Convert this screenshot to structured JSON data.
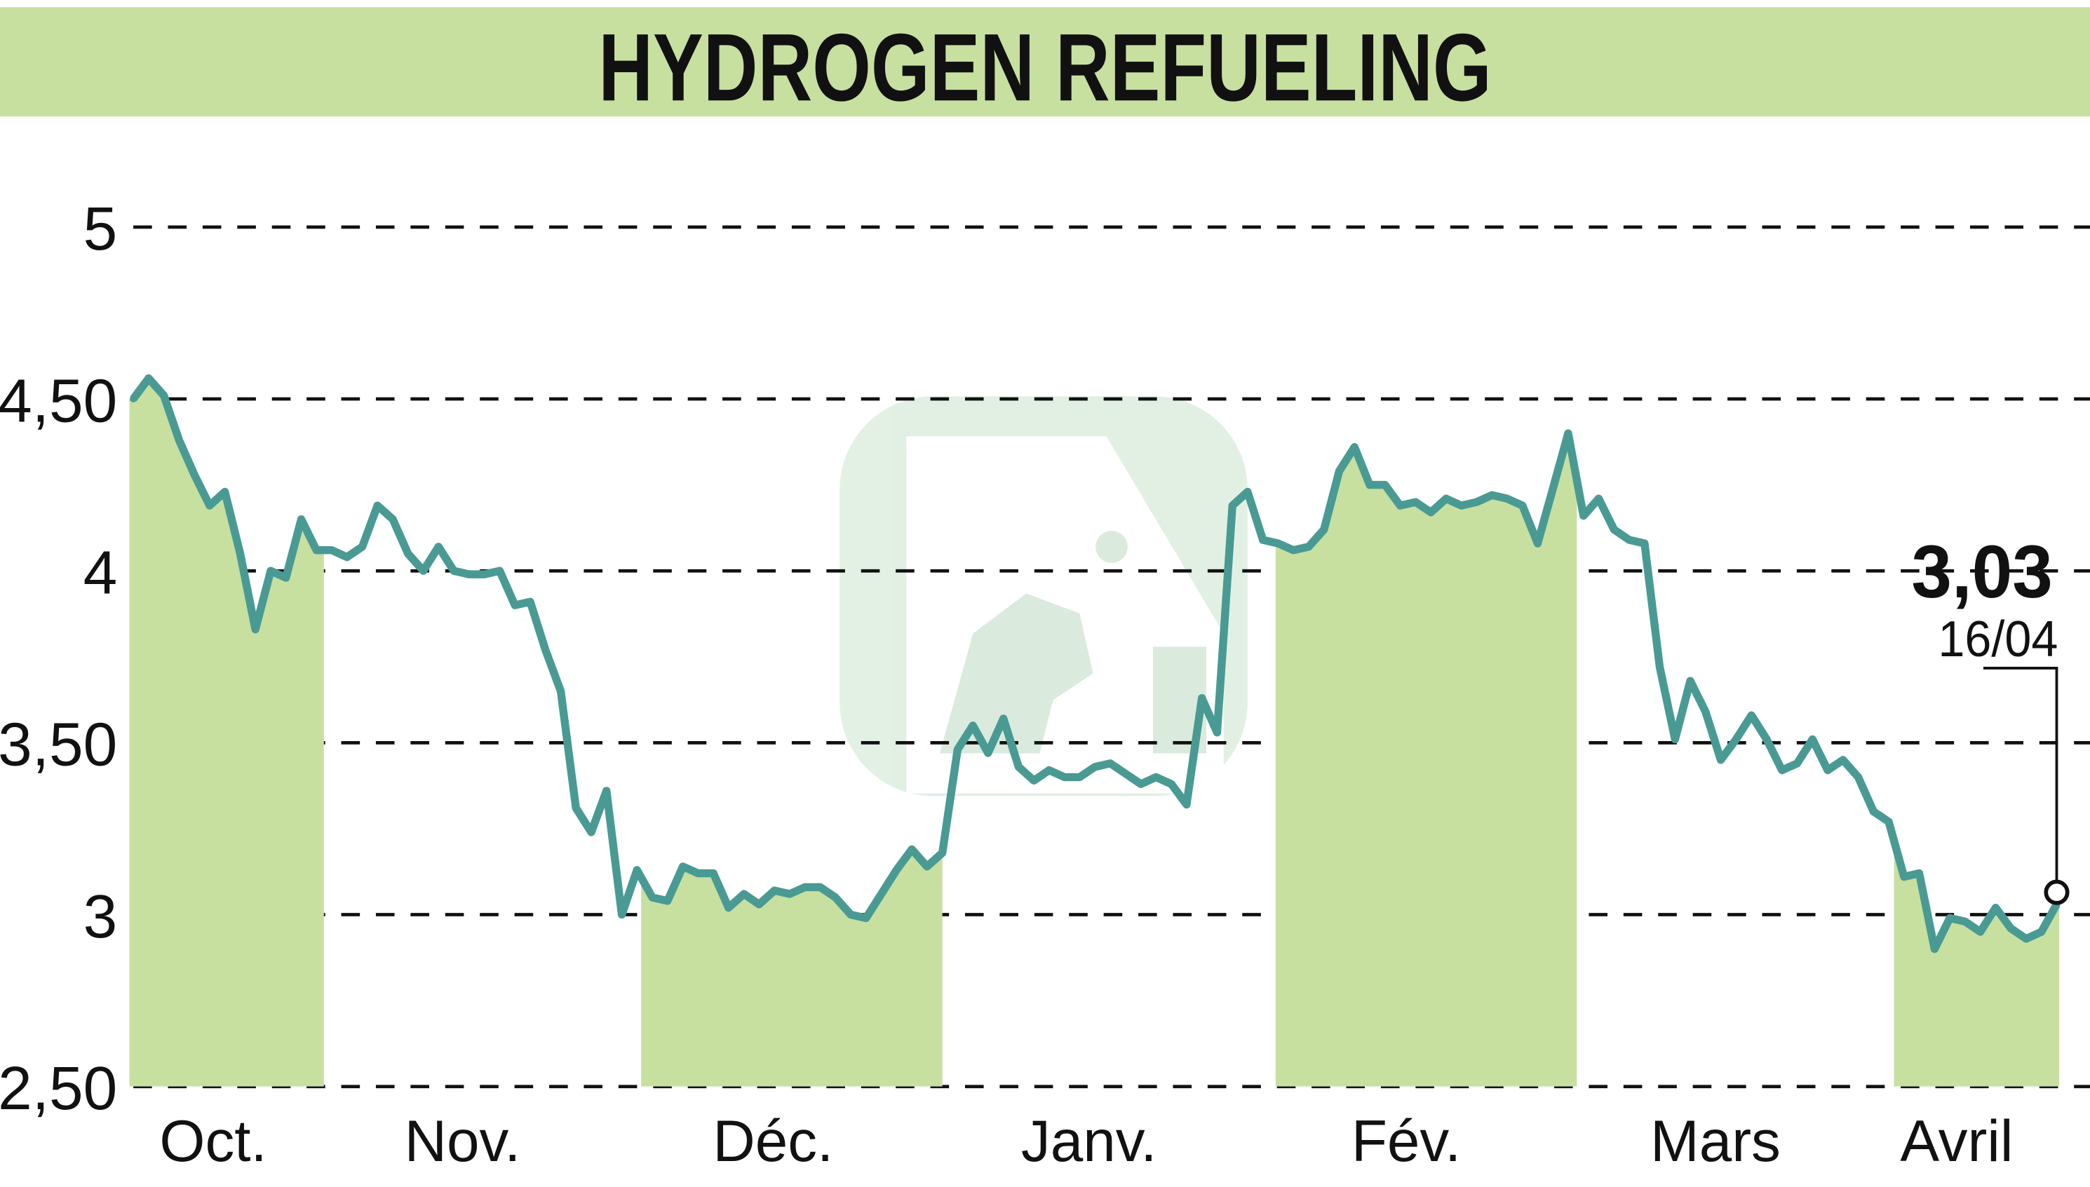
{
  "chart_data": {
    "type": "line",
    "title": "HYDROGEN REFUELING",
    "xlabel": "",
    "ylabel": "",
    "ylim": [
      2.5,
      5
    ],
    "yticks": [
      "5",
      "4,50",
      "4",
      "3,50",
      "3",
      "2,50"
    ],
    "ytick_values": [
      5,
      4.5,
      4,
      3.5,
      3,
      2.5
    ],
    "grid": "horizontal dashed",
    "months": [
      "Oct.",
      "Nov.",
      "Déc.",
      "Janv.",
      "Fév.",
      "Mars",
      "Avril"
    ],
    "shaded_months": [
      "Oct.",
      "Déc.",
      "Fév.",
      "Avril"
    ],
    "values": [
      4.5,
      4.56,
      4.51,
      4.38,
      4.28,
      4.19,
      4.23,
      4.05,
      3.83,
      4.0,
      3.98,
      4.15,
      4.06,
      4.06,
      4.04,
      4.07,
      4.19,
      4.15,
      4.05,
      4.0,
      4.07,
      4.0,
      3.99,
      3.99,
      4.0,
      3.9,
      3.91,
      3.77,
      3.65,
      3.31,
      3.24,
      3.36,
      3.0,
      3.13,
      3.05,
      3.04,
      3.14,
      3.12,
      3.12,
      3.02,
      3.06,
      3.03,
      3.07,
      3.06,
      3.08,
      3.08,
      3.05,
      3.0,
      2.99,
      3.06,
      3.13,
      3.19,
      3.14,
      3.18,
      3.48,
      3.55,
      3.47,
      3.57,
      3.43,
      3.39,
      3.42,
      3.4,
      3.4,
      3.43,
      3.44,
      3.41,
      3.38,
      3.4,
      3.38,
      3.32,
      3.63,
      3.53,
      4.19,
      4.23,
      4.09,
      4.08,
      4.06,
      4.07,
      4.12,
      4.29,
      4.36,
      4.25,
      4.25,
      4.19,
      4.2,
      4.17,
      4.21,
      4.19,
      4.2,
      4.22,
      4.21,
      4.19,
      4.08,
      4.24,
      4.4,
      4.16,
      4.21,
      4.12,
      4.09,
      4.08,
      3.72,
      3.51,
      3.68,
      3.59,
      3.45,
      3.51,
      3.58,
      3.51,
      3.42,
      3.44,
      3.51,
      3.42,
      3.45,
      3.4,
      3.3,
      3.27,
      3.11,
      3.12,
      2.9,
      2.99,
      2.98,
      2.95,
      3.02,
      2.96,
      2.93,
      2.95,
      3.03
    ],
    "last": {
      "value": "3,03",
      "date": "16/04"
    },
    "colors": {
      "line": "#4a9a94",
      "fill": "#c7e0a0",
      "header": "#c7e0a0",
      "text": "#111111"
    }
  }
}
